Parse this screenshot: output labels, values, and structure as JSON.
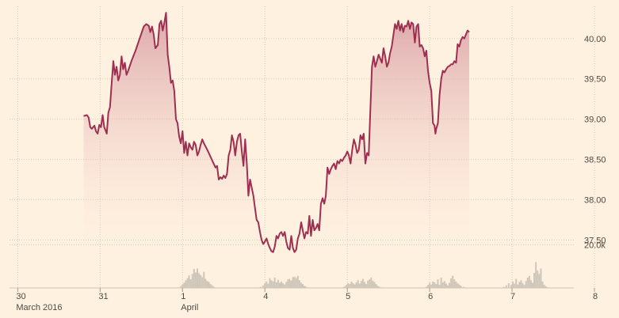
{
  "chart_data": {
    "type": "area",
    "colors": {
      "line": "#9e2f50",
      "fill_top": "#d79aa1",
      "fill_bottom": "#fff1e0",
      "volume": "#cec6b9",
      "grid": "#d6cabc",
      "background": "#fff1e0"
    },
    "grid": true,
    "y_axis": {
      "position": "right",
      "ylim": [
        37.2,
        40.4
      ],
      "ticks": [
        37.5,
        38.0,
        38.5,
        39.0,
        39.5,
        40.0
      ],
      "tick_labels": [
        "37.50",
        "38.00",
        "38.50",
        "39.00",
        "39.50",
        "40.00"
      ]
    },
    "volume_axis": {
      "ylim": [
        0,
        29000
      ],
      "tick": 20000,
      "tick_label": "20.0k"
    },
    "x_axis": {
      "xlim": [
        -0.1,
        6.75
      ],
      "ticks": [
        {
          "x": 0,
          "label": "30",
          "sublabel": "March 2016"
        },
        {
          "x": 1,
          "label": "31",
          "sublabel": ""
        },
        {
          "x": 2,
          "label": "1",
          "sublabel": "April"
        },
        {
          "x": 3,
          "label": "4",
          "sublabel": ""
        },
        {
          "x": 4,
          "label": "5",
          "sublabel": ""
        },
        {
          "x": 5,
          "label": "6",
          "sublabel": ""
        },
        {
          "x": 6,
          "label": "7",
          "sublabel": ""
        },
        {
          "x": 7,
          "label": "8",
          "sublabel": ""
        }
      ]
    },
    "price": [
      [
        0.8,
        39.04
      ],
      [
        0.84,
        39.05
      ],
      [
        0.86,
        39.02
      ],
      [
        0.88,
        38.9
      ],
      [
        0.9,
        38.88
      ],
      [
        0.93,
        38.92
      ],
      [
        0.95,
        38.85
      ],
      [
        0.97,
        38.82
      ],
      [
        0.99,
        38.93
      ],
      [
        1.01,
        38.9
      ],
      [
        1.03,
        39.05
      ],
      [
        1.05,
        38.9
      ],
      [
        1.07,
        38.85
      ],
      [
        1.08,
        38.82
      ],
      [
        1.1,
        39.08
      ],
      [
        1.12,
        39.15
      ],
      [
        1.14,
        39.45
      ],
      [
        1.16,
        39.72
      ],
      [
        1.18,
        39.55
      ],
      [
        1.2,
        39.65
      ],
      [
        1.22,
        39.48
      ],
      [
        1.24,
        39.55
      ],
      [
        1.26,
        39.78
      ],
      [
        1.28,
        39.62
      ],
      [
        1.3,
        39.7
      ],
      [
        1.32,
        39.55
      ],
      [
        1.34,
        39.6
      ],
      [
        1.38,
        39.72
      ],
      [
        1.43,
        39.85
      ],
      [
        1.48,
        40.0
      ],
      [
        1.53,
        40.15
      ],
      [
        1.56,
        40.18
      ],
      [
        1.59,
        40.16
      ],
      [
        1.61,
        40.08
      ],
      [
        1.63,
        40.15
      ],
      [
        1.65,
        40.05
      ],
      [
        1.67,
        39.88
      ],
      [
        1.7,
        39.92
      ],
      [
        1.72,
        40.18
      ],
      [
        1.74,
        40.22
      ],
      [
        1.76,
        40.1
      ],
      [
        1.78,
        40.2
      ],
      [
        1.8,
        40.32
      ],
      [
        1.82,
        39.8
      ],
      [
        1.84,
        39.65
      ],
      [
        1.86,
        39.45
      ],
      [
        1.88,
        39.48
      ],
      [
        1.9,
        39.35
      ],
      [
        1.92,
        39.0
      ],
      [
        1.94,
        38.95
      ],
      [
        1.96,
        38.78
      ],
      [
        1.98,
        38.7
      ],
      [
        2.0,
        38.85
      ],
      [
        2.02,
        38.58
      ],
      [
        2.04,
        38.72
      ],
      [
        2.06,
        38.55
      ],
      [
        2.08,
        38.7
      ],
      [
        2.1,
        38.65
      ],
      [
        2.12,
        38.62
      ],
      [
        2.14,
        38.72
      ],
      [
        2.16,
        38.68
      ],
      [
        2.18,
        38.55
      ],
      [
        2.2,
        38.6
      ],
      [
        2.22,
        38.68
      ],
      [
        2.24,
        38.75
      ],
      [
        2.26,
        38.7
      ],
      [
        2.3,
        38.62
      ],
      [
        2.4,
        38.4
      ],
      [
        2.42,
        38.42
      ],
      [
        2.44,
        38.25
      ],
      [
        2.46,
        38.28
      ],
      [
        2.48,
        38.26
      ],
      [
        2.5,
        38.3
      ],
      [
        2.52,
        38.27
      ],
      [
        2.54,
        38.32
      ],
      [
        2.56,
        38.55
      ],
      [
        2.58,
        38.62
      ],
      [
        2.6,
        38.8
      ],
      [
        2.62,
        38.72
      ],
      [
        2.64,
        38.55
      ],
      [
        2.66,
        38.72
      ],
      [
        2.68,
        38.8
      ],
      [
        2.7,
        38.82
      ],
      [
        2.72,
        38.6
      ],
      [
        2.74,
        38.42
      ],
      [
        2.76,
        38.75
      ],
      [
        2.78,
        38.45
      ],
      [
        2.8,
        38.05
      ],
      [
        2.82,
        38.25
      ],
      [
        2.84,
        38.15
      ],
      [
        2.86,
        38.05
      ],
      [
        2.88,
        37.9
      ],
      [
        2.9,
        37.75
      ],
      [
        2.92,
        37.72
      ],
      [
        2.94,
        37.6
      ],
      [
        2.96,
        37.5
      ],
      [
        2.98,
        37.45
      ],
      [
        3.0,
        37.48
      ],
      [
        3.02,
        37.52
      ],
      [
        3.04,
        37.45
      ],
      [
        3.06,
        37.4
      ],
      [
        3.08,
        37.36
      ],
      [
        3.1,
        37.35
      ],
      [
        3.12,
        37.42
      ],
      [
        3.14,
        37.55
      ],
      [
        3.16,
        37.52
      ],
      [
        3.18,
        37.58
      ],
      [
        3.2,
        37.6
      ],
      [
        3.22,
        37.55
      ],
      [
        3.24,
        37.6
      ],
      [
        3.26,
        37.48
      ],
      [
        3.28,
        37.4
      ],
      [
        3.3,
        37.38
      ],
      [
        3.32,
        37.55
      ],
      [
        3.34,
        37.4
      ],
      [
        3.36,
        37.35
      ],
      [
        3.38,
        37.38
      ],
      [
        3.4,
        37.52
      ],
      [
        3.42,
        37.58
      ],
      [
        3.44,
        37.72
      ],
      [
        3.46,
        37.62
      ],
      [
        3.48,
        37.52
      ],
      [
        3.5,
        37.6
      ],
      [
        3.52,
        37.58
      ],
      [
        3.54,
        37.8
      ],
      [
        3.56,
        37.55
      ],
      [
        3.58,
        37.75
      ],
      [
        3.6,
        37.62
      ],
      [
        3.62,
        37.65
      ],
      [
        3.64,
        37.7
      ],
      [
        3.66,
        37.62
      ],
      [
        3.68,
        37.95
      ],
      [
        3.7,
        38.02
      ],
      [
        3.72,
        37.95
      ],
      [
        3.74,
        38.05
      ],
      [
        3.76,
        38.4
      ],
      [
        3.78,
        38.32
      ],
      [
        3.8,
        38.38
      ],
      [
        3.82,
        38.42
      ],
      [
        3.84,
        38.45
      ],
      [
        3.86,
        38.38
      ],
      [
        3.88,
        38.48
      ],
      [
        3.9,
        38.45
      ],
      [
        3.92,
        38.5
      ],
      [
        3.94,
        38.48
      ],
      [
        3.96,
        38.52
      ],
      [
        3.98,
        38.55
      ],
      [
        4.0,
        38.6
      ],
      [
        4.02,
        38.55
      ],
      [
        4.04,
        38.45
      ],
      [
        4.06,
        38.62
      ],
      [
        4.08,
        38.75
      ],
      [
        4.1,
        38.68
      ],
      [
        4.12,
        38.58
      ],
      [
        4.14,
        38.62
      ],
      [
        4.16,
        38.8
      ],
      [
        4.18,
        38.75
      ],
      [
        4.2,
        38.82
      ],
      [
        4.22,
        38.45
      ],
      [
        4.24,
        38.58
      ],
      [
        4.26,
        38.55
      ],
      [
        4.28,
        39.12
      ],
      [
        4.3,
        39.65
      ],
      [
        4.32,
        39.78
      ],
      [
        4.34,
        39.65
      ],
      [
        4.36,
        39.72
      ],
      [
        4.38,
        39.8
      ],
      [
        4.4,
        39.75
      ],
      [
        4.42,
        39.7
      ],
      [
        4.44,
        39.88
      ],
      [
        4.46,
        39.78
      ],
      [
        4.48,
        39.65
      ],
      [
        4.5,
        39.7
      ],
      [
        4.52,
        39.82
      ],
      [
        4.54,
        39.9
      ],
      [
        4.56,
        40.05
      ],
      [
        4.58,
        40.18
      ],
      [
        4.6,
        40.12
      ],
      [
        4.62,
        40.22
      ],
      [
        4.64,
        40.1
      ],
      [
        4.66,
        40.18
      ],
      [
        4.68,
        40.08
      ],
      [
        4.7,
        40.16
      ],
      [
        4.72,
        40.15
      ],
      [
        4.74,
        40.22
      ],
      [
        4.76,
        40.12
      ],
      [
        4.78,
        40.2
      ],
      [
        4.8,
        40.18
      ],
      [
        4.82,
        39.95
      ],
      [
        4.84,
        40.15
      ],
      [
        4.86,
        40.18
      ],
      [
        4.88,
        39.9
      ],
      [
        4.9,
        39.92
      ],
      [
        4.92,
        39.88
      ],
      [
        4.94,
        39.78
      ],
      [
        4.96,
        39.85
      ],
      [
        4.98,
        39.6
      ],
      [
        5.0,
        39.45
      ],
      [
        5.02,
        39.35
      ],
      [
        5.04,
        38.95
      ],
      [
        5.06,
        38.92
      ],
      [
        5.07,
        38.82
      ],
      [
        5.08,
        38.88
      ],
      [
        5.1,
        38.95
      ],
      [
        5.12,
        39.3
      ],
      [
        5.14,
        39.5
      ],
      [
        5.16,
        39.6
      ],
      [
        5.18,
        39.58
      ],
      [
        5.2,
        39.62
      ],
      [
        5.22,
        39.65
      ],
      [
        5.24,
        39.66
      ],
      [
        5.26,
        39.68
      ],
      [
        5.28,
        39.68
      ],
      [
        5.3,
        39.72
      ],
      [
        5.32,
        39.7
      ],
      [
        5.34,
        39.93
      ],
      [
        5.36,
        39.9
      ],
      [
        5.38,
        39.98
      ],
      [
        5.4,
        40.02
      ],
      [
        5.42,
        40.0
      ],
      [
        5.44,
        40.05
      ],
      [
        5.46,
        40.1
      ],
      [
        5.48,
        40.08
      ]
    ],
    "volume": [
      [
        1.95,
        300
      ],
      [
        1.98,
        800
      ],
      [
        2.0,
        1500
      ],
      [
        2.02,
        2500
      ],
      [
        2.04,
        3500
      ],
      [
        2.06,
        4500
      ],
      [
        2.08,
        5800
      ],
      [
        2.1,
        4000
      ],
      [
        2.12,
        6500
      ],
      [
        2.14,
        8800
      ],
      [
        2.16,
        7200
      ],
      [
        2.18,
        9000
      ],
      [
        2.2,
        6800
      ],
      [
        2.22,
        6000
      ],
      [
        2.24,
        5000
      ],
      [
        2.26,
        7500
      ],
      [
        2.28,
        4200
      ],
      [
        2.3,
        3200
      ],
      [
        2.32,
        2800
      ],
      [
        2.34,
        1800
      ],
      [
        2.36,
        1200
      ],
      [
        2.38,
        600
      ],
      [
        2.95,
        500
      ],
      [
        2.98,
        1200
      ],
      [
        3.0,
        2200
      ],
      [
        3.02,
        3000
      ],
      [
        3.04,
        2000
      ],
      [
        3.06,
        4500
      ],
      [
        3.08,
        3500
      ],
      [
        3.1,
        3000
      ],
      [
        3.12,
        4800
      ],
      [
        3.14,
        2600
      ],
      [
        3.16,
        3800
      ],
      [
        3.18,
        2400
      ],
      [
        3.2,
        3000
      ],
      [
        3.22,
        2200
      ],
      [
        3.24,
        1600
      ],
      [
        3.26,
        2800
      ],
      [
        3.28,
        4000
      ],
      [
        3.3,
        4200
      ],
      [
        3.32,
        3400
      ],
      [
        3.34,
        5000
      ],
      [
        3.36,
        5200
      ],
      [
        3.38,
        4600
      ],
      [
        3.4,
        5600
      ],
      [
        3.42,
        3600
      ],
      [
        3.44,
        2400
      ],
      [
        3.46,
        1800
      ],
      [
        3.48,
        1000
      ],
      [
        3.5,
        600
      ],
      [
        3.95,
        300
      ],
      [
        3.97,
        700
      ],
      [
        3.99,
        1400
      ],
      [
        4.01,
        2200
      ],
      [
        4.03,
        1800
      ],
      [
        4.05,
        3000
      ],
      [
        4.07,
        2200
      ],
      [
        4.09,
        1600
      ],
      [
        4.11,
        2600
      ],
      [
        4.13,
        3600
      ],
      [
        4.15,
        2000
      ],
      [
        4.17,
        3200
      ],
      [
        4.19,
        4200
      ],
      [
        4.21,
        2800
      ],
      [
        4.23,
        1800
      ],
      [
        4.25,
        3400
      ],
      [
        4.27,
        4000
      ],
      [
        4.29,
        4800
      ],
      [
        4.31,
        3400
      ],
      [
        4.33,
        2800
      ],
      [
        4.35,
        1800
      ],
      [
        4.37,
        1000
      ],
      [
        4.39,
        600
      ],
      [
        4.42,
        300
      ],
      [
        4.96,
        600
      ],
      [
        4.98,
        1400
      ],
      [
        5.0,
        2400
      ],
      [
        5.02,
        1600
      ],
      [
        5.04,
        3000
      ],
      [
        5.06,
        2600
      ],
      [
        5.08,
        1800
      ],
      [
        5.1,
        4000
      ],
      [
        5.12,
        1400
      ],
      [
        5.14,
        4800
      ],
      [
        5.16,
        2600
      ],
      [
        5.18,
        3200
      ],
      [
        5.2,
        2000
      ],
      [
        5.22,
        1200
      ],
      [
        5.24,
        2400
      ],
      [
        5.26,
        4400
      ],
      [
        5.28,
        5600
      ],
      [
        5.3,
        4000
      ],
      [
        5.32,
        3000
      ],
      [
        5.34,
        2200
      ],
      [
        5.36,
        1600
      ],
      [
        5.38,
        1000
      ],
      [
        5.41,
        500
      ],
      [
        5.44,
        300
      ],
      [
        5.9,
        500
      ],
      [
        5.93,
        1200
      ],
      [
        5.96,
        2200
      ],
      [
        5.99,
        1400
      ],
      [
        6.01,
        3000
      ],
      [
        6.03,
        2000
      ],
      [
        6.05,
        4200
      ],
      [
        6.07,
        1600
      ],
      [
        6.09,
        2800
      ],
      [
        6.11,
        3600
      ],
      [
        6.13,
        2200
      ],
      [
        6.15,
        1400
      ],
      [
        6.17,
        3200
      ],
      [
        6.19,
        4800
      ],
      [
        6.21,
        5600
      ],
      [
        6.23,
        3600
      ],
      [
        6.25,
        2400
      ],
      [
        6.27,
        7000
      ],
      [
        6.29,
        12000
      ],
      [
        6.31,
        8000
      ],
      [
        6.33,
        6500
      ],
      [
        6.35,
        9000
      ],
      [
        6.37,
        3000
      ],
      [
        6.39,
        1500
      ],
      [
        6.41,
        800
      ],
      [
        6.43,
        300
      ]
    ]
  }
}
